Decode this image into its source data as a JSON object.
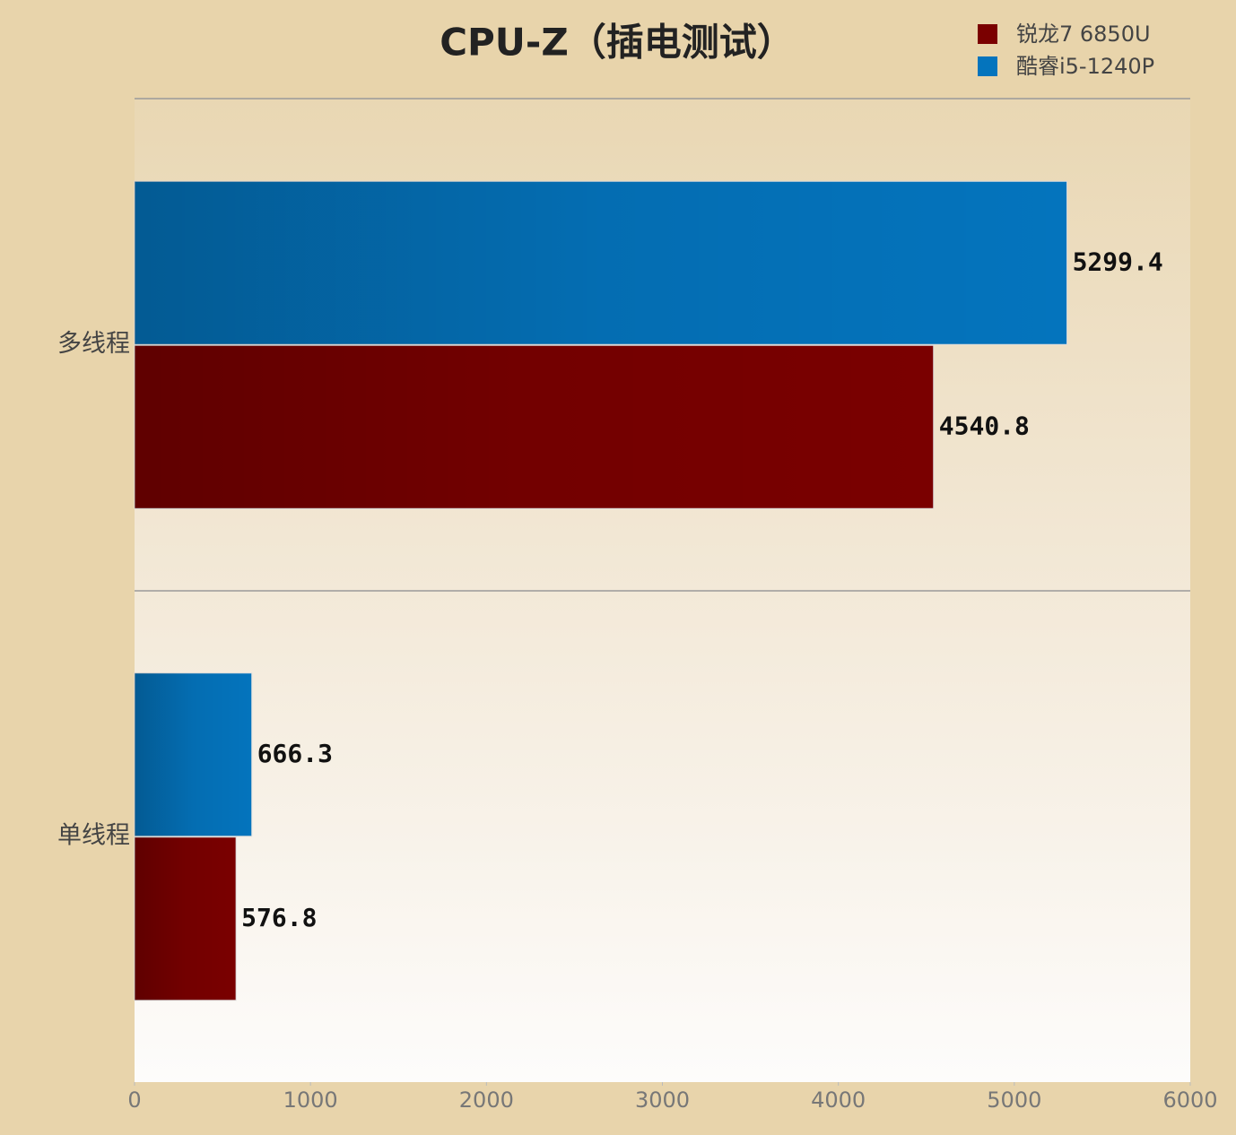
{
  "chart_data": {
    "type": "hbar",
    "title": "CPU-Z（插电测试）",
    "categories": [
      "多线程",
      "单线程"
    ],
    "series": [
      {
        "name": "锐龙7 6850U",
        "color": "#7a0000",
        "values": [
          4540.8,
          576.8
        ]
      },
      {
        "name": "酷睿i5-1240P",
        "color": "#0474bd",
        "values": [
          5299.4,
          666.3
        ]
      }
    ],
    "xlim": [
      0,
      6000
    ],
    "xticks": [
      0,
      1000,
      2000,
      3000,
      4000,
      5000,
      6000
    ],
    "legend": "top-right"
  }
}
